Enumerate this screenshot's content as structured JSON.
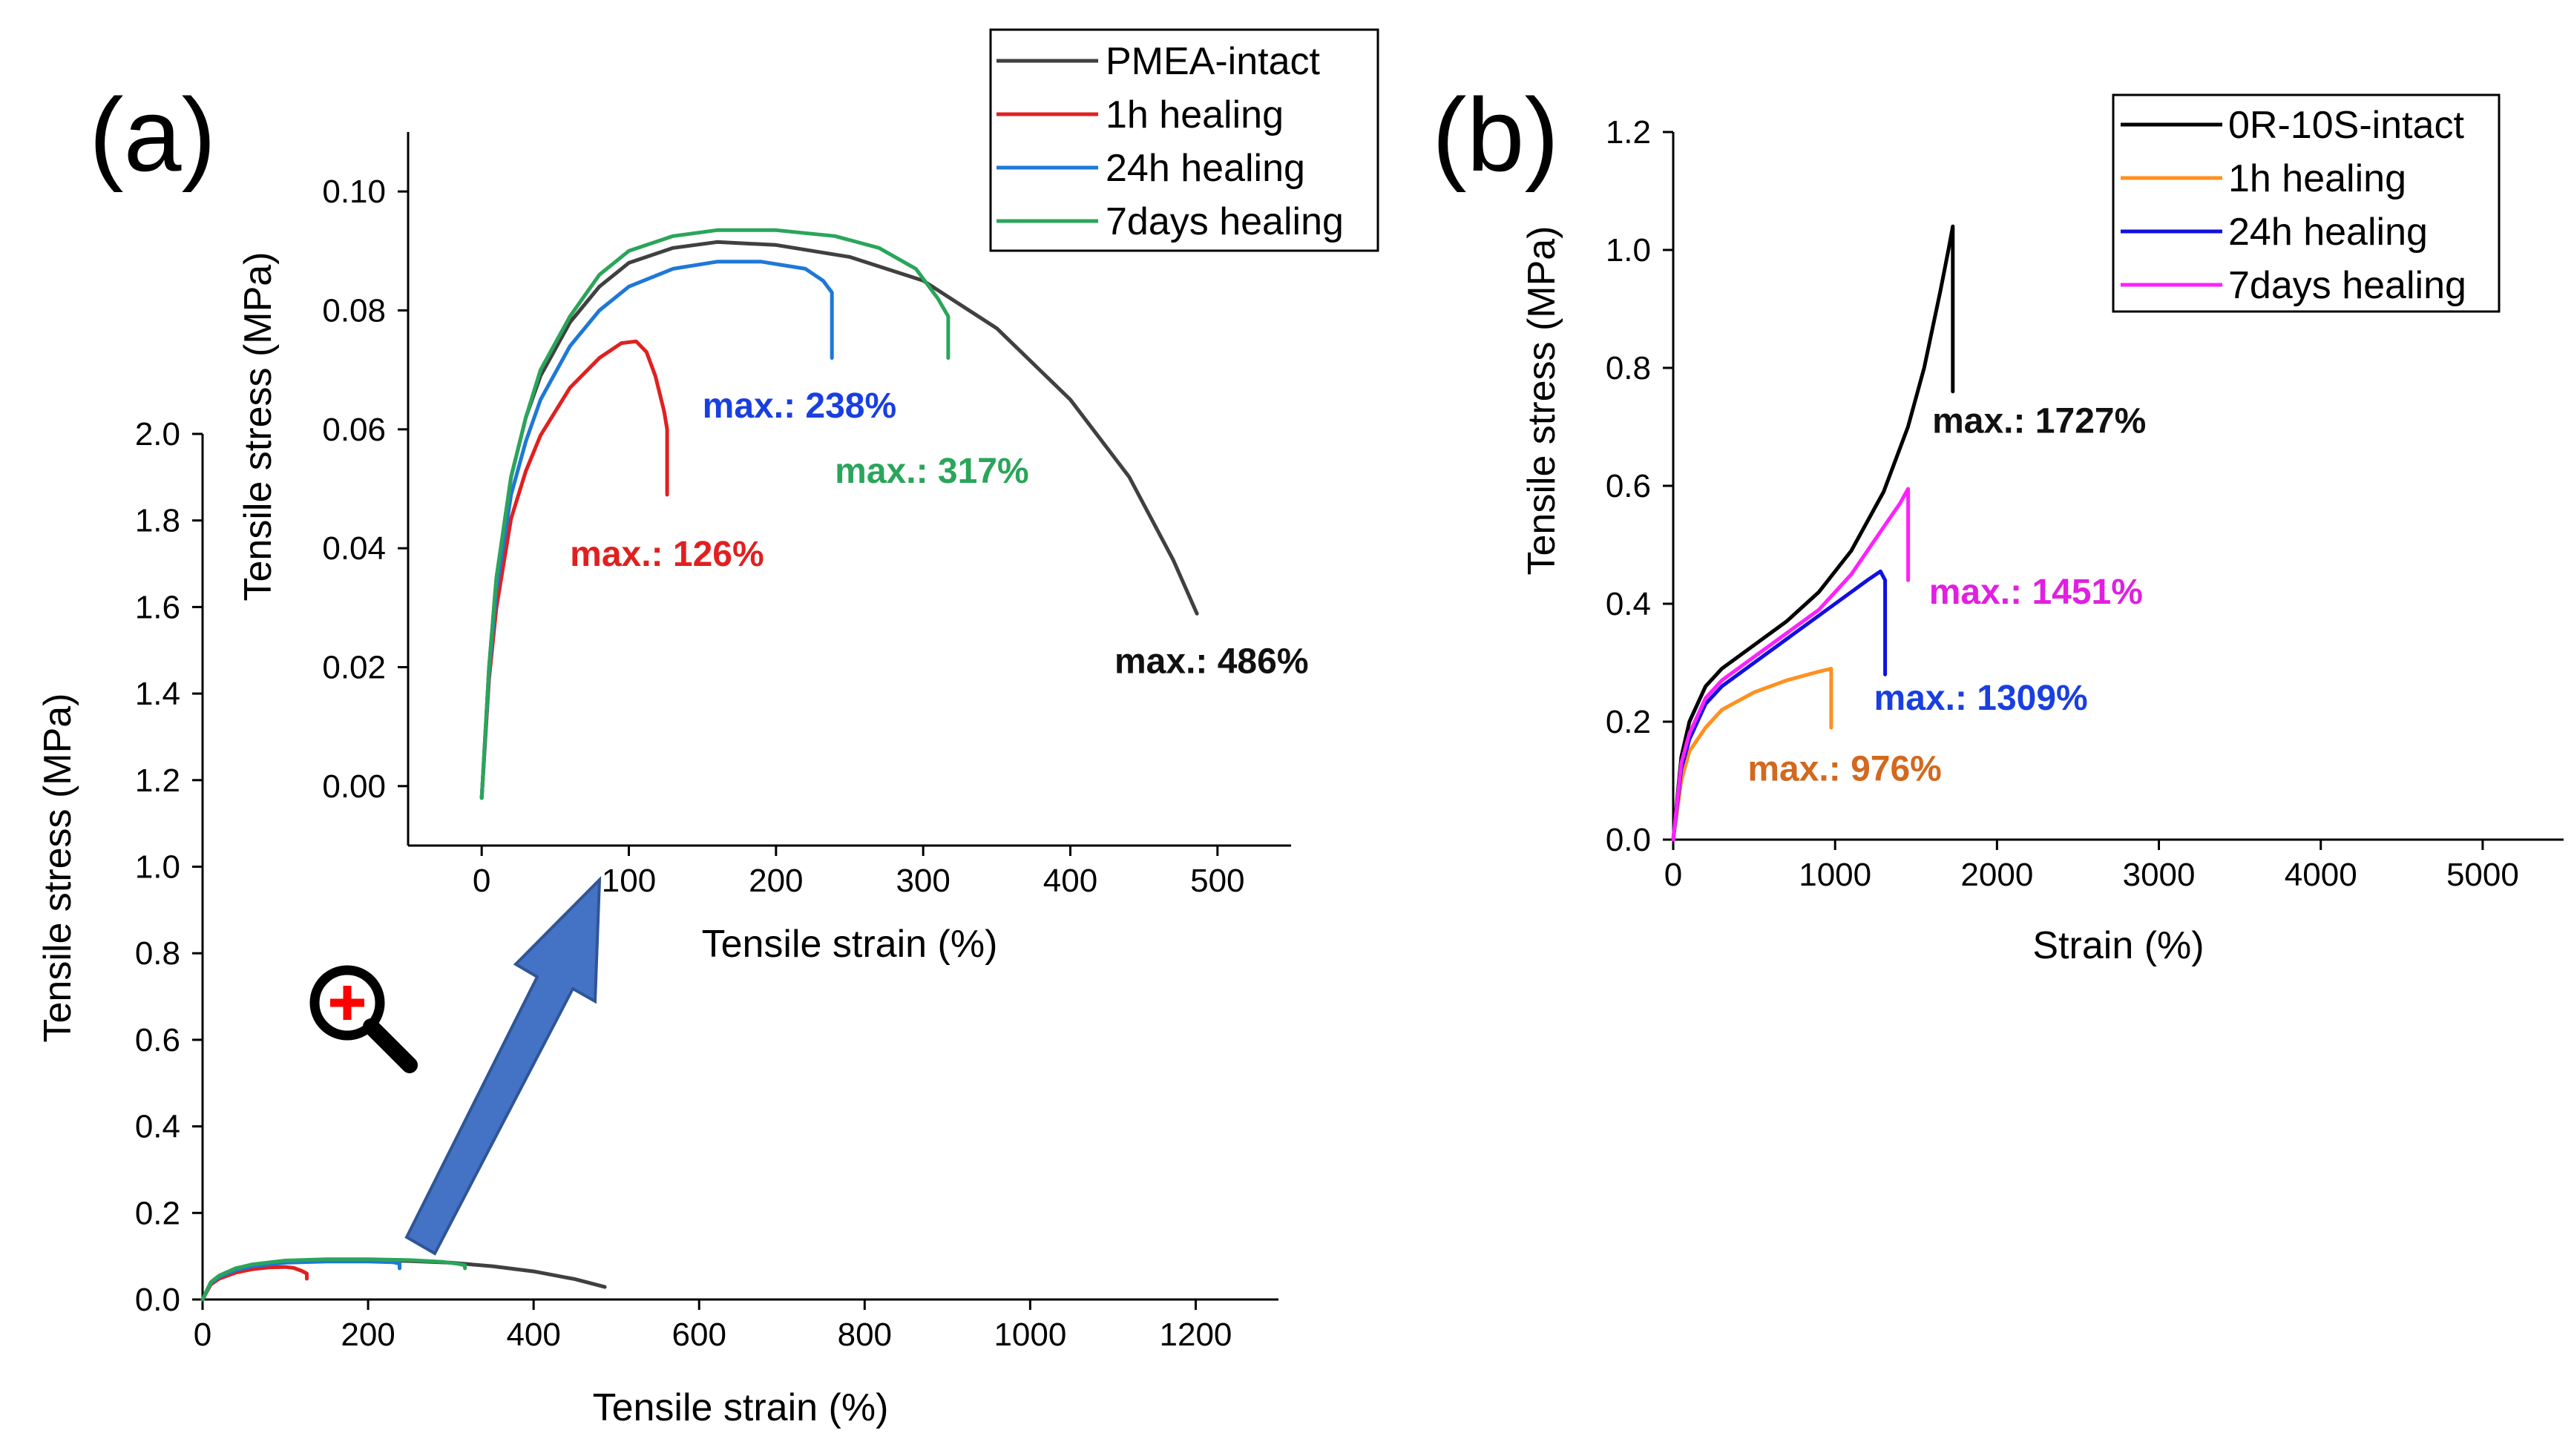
{
  "panels": {
    "a": {
      "label": "(a)"
    },
    "b": {
      "label": "(b)"
    }
  },
  "chart_data": [
    {
      "id": "a-main",
      "type": "line",
      "xlabel": "Tensile strain (%)",
      "ylabel": "Tensile stress (MPa)",
      "xlim": [
        0,
        1300
      ],
      "ylim": [
        0,
        2.0
      ],
      "xticks": [
        0,
        200,
        400,
        600,
        800,
        1000,
        1200
      ],
      "yticks": [
        0.0,
        0.2,
        0.4,
        0.6,
        0.8,
        1.0,
        1.2,
        1.4,
        1.6,
        1.8,
        2.0
      ],
      "series": [
        {
          "name": "PMEA-intact",
          "color": "#404040",
          "x": [
            0,
            10,
            20,
            40,
            60,
            100,
            150,
            200,
            250,
            300,
            350,
            400,
            450,
            486
          ],
          "y": [
            0,
            0.04,
            0.055,
            0.072,
            0.08,
            0.088,
            0.091,
            0.091,
            0.089,
            0.085,
            0.077,
            0.065,
            0.047,
            0.029
          ]
        },
        {
          "name": "1h healing",
          "color": "#e02020",
          "x": [
            0,
            10,
            20,
            40,
            60,
            80,
            100,
            110,
            120,
            126,
            126
          ],
          "y": [
            0,
            0.035,
            0.048,
            0.062,
            0.07,
            0.074,
            0.075,
            0.073,
            0.066,
            0.06,
            0.048
          ]
        },
        {
          "name": "24h healing",
          "color": "#1e78d6",
          "x": [
            0,
            10,
            20,
            40,
            60,
            100,
            150,
            200,
            230,
            238,
            238
          ],
          "y": [
            0,
            0.038,
            0.052,
            0.068,
            0.077,
            0.085,
            0.088,
            0.088,
            0.086,
            0.083,
            0.072
          ]
        },
        {
          "name": "7days healing",
          "color": "#2aa55a",
          "x": [
            0,
            10,
            20,
            40,
            60,
            100,
            150,
            200,
            250,
            290,
            310,
            317,
            317
          ],
          "y": [
            0,
            0.04,
            0.055,
            0.072,
            0.081,
            0.09,
            0.093,
            0.093,
            0.091,
            0.087,
            0.082,
            0.079,
            0.072
          ]
        }
      ]
    },
    {
      "id": "a-inset",
      "type": "line",
      "xlabel": "Tensile strain (%)",
      "ylabel": "Tensile stress (MPa)",
      "xlim": [
        -50,
        550
      ],
      "ylim": [
        -0.01,
        0.11
      ],
      "xticks": [
        0,
        100,
        200,
        300,
        400,
        500
      ],
      "yticks": [
        0.0,
        0.02,
        0.04,
        0.06,
        0.08,
        0.1
      ],
      "ytick_labels": [
        "0.00",
        "0.02",
        "0.04",
        "0.06",
        "0.08",
        "0.10"
      ],
      "legend": {
        "position": "top-right",
        "entries": [
          "PMEA-intact",
          "1h healing",
          "24h healing",
          "7days healing"
        ]
      },
      "annotations": [
        {
          "text": "max.: 126%",
          "color": "#e02020",
          "x": 60,
          "y": 0.037
        },
        {
          "text": "max.: 238%",
          "color": "#1a3fe0",
          "x": 150,
          "y": 0.062
        },
        {
          "text": "max.: 317%",
          "color": "#2aa55a",
          "x": 240,
          "y": 0.051
        },
        {
          "text": "max.: 486%",
          "color": "#111111",
          "x": 430,
          "y": 0.019
        }
      ],
      "series": [
        {
          "name": "PMEA-intact",
          "color": "#404040",
          "x": [
            0,
            5,
            10,
            20,
            30,
            40,
            60,
            80,
            100,
            130,
            160,
            200,
            250,
            300,
            350,
            400,
            440,
            470,
            486
          ],
          "y": [
            -0.002,
            0.02,
            0.035,
            0.052,
            0.062,
            0.069,
            0.078,
            0.084,
            0.088,
            0.0905,
            0.0915,
            0.091,
            0.089,
            0.085,
            0.077,
            0.065,
            0.052,
            0.038,
            0.029
          ]
        },
        {
          "name": "1h healing",
          "color": "#e02020",
          "x": [
            0,
            5,
            10,
            20,
            30,
            40,
            60,
            80,
            95,
            105,
            112,
            118,
            124,
            126,
            126
          ],
          "y": [
            -0.002,
            0.018,
            0.03,
            0.045,
            0.053,
            0.059,
            0.067,
            0.072,
            0.0745,
            0.0748,
            0.073,
            0.069,
            0.063,
            0.06,
            0.049
          ]
        },
        {
          "name": "24h healing",
          "color": "#1e78d6",
          "x": [
            0,
            5,
            10,
            20,
            30,
            40,
            60,
            80,
            100,
            130,
            160,
            190,
            220,
            232,
            238,
            238
          ],
          "y": [
            -0.002,
            0.019,
            0.033,
            0.049,
            0.058,
            0.065,
            0.074,
            0.08,
            0.084,
            0.087,
            0.0882,
            0.0882,
            0.087,
            0.085,
            0.083,
            0.072
          ]
        },
        {
          "name": "7days healing",
          "color": "#2aa55a",
          "x": [
            0,
            5,
            10,
            20,
            30,
            40,
            60,
            80,
            100,
            130,
            160,
            200,
            240,
            270,
            295,
            310,
            317,
            317
          ],
          "y": [
            -0.002,
            0.02,
            0.035,
            0.052,
            0.062,
            0.07,
            0.079,
            0.086,
            0.09,
            0.0925,
            0.0935,
            0.0935,
            0.0925,
            0.0905,
            0.087,
            0.082,
            0.079,
            0.072
          ]
        }
      ]
    },
    {
      "id": "b",
      "type": "line",
      "xlabel": "Strain (%)",
      "ylabel": "Tensile stress (MPa)",
      "xlim": [
        0,
        5500
      ],
      "ylim": [
        0,
        1.2
      ],
      "xticks": [
        0,
        1000,
        2000,
        3000,
        4000,
        5000
      ],
      "yticks": [
        0.0,
        0.2,
        0.4,
        0.6,
        0.8,
        1.0,
        1.2
      ],
      "legend": {
        "position": "top-right",
        "entries": [
          "0R-10S-intact",
          "1h healing",
          "24h healing",
          "7days healing"
        ]
      },
      "annotations": [
        {
          "text": "max.: 1727%",
          "color": "#111111",
          "x": 1600,
          "y": 0.69
        },
        {
          "text": "max.: 1451%",
          "color": "#e020e0",
          "x": 1580,
          "y": 0.4
        },
        {
          "text": "max.: 1309%",
          "color": "#1a3fe0",
          "x": 1240,
          "y": 0.22
        },
        {
          "text": "max.: 976%",
          "color": "#d2691e",
          "x": 460,
          "y": 0.1
        }
      ],
      "series": [
        {
          "name": "0R-10S-intact",
          "color": "#000000",
          "x": [
            0,
            50,
            100,
            200,
            300,
            500,
            700,
            900,
            1100,
            1300,
            1450,
            1550,
            1650,
            1700,
            1727,
            1727
          ],
          "y": [
            0,
            0.14,
            0.2,
            0.26,
            0.29,
            0.33,
            0.37,
            0.42,
            0.49,
            0.59,
            0.7,
            0.8,
            0.93,
            1.0,
            1.04,
            0.76
          ]
        },
        {
          "name": "1h healing",
          "color": "#ff9020",
          "x": [
            0,
            50,
            100,
            200,
            300,
            500,
            700,
            900,
            976,
            976
          ],
          "y": [
            0,
            0.1,
            0.15,
            0.19,
            0.22,
            0.25,
            0.27,
            0.285,
            0.29,
            0.19
          ]
        },
        {
          "name": "24h healing",
          "color": "#1010e0",
          "x": [
            0,
            50,
            100,
            200,
            300,
            500,
            700,
            900,
            1100,
            1200,
            1280,
            1309,
            1309
          ],
          "y": [
            0,
            0.12,
            0.17,
            0.23,
            0.26,
            0.3,
            0.34,
            0.38,
            0.42,
            0.44,
            0.455,
            0.44,
            0.28
          ]
        },
        {
          "name": "7days healing",
          "color": "#ff20ff",
          "x": [
            0,
            50,
            100,
            200,
            300,
            500,
            700,
            900,
            1100,
            1300,
            1400,
            1451,
            1451
          ],
          "y": [
            0,
            0.13,
            0.18,
            0.24,
            0.27,
            0.31,
            0.35,
            0.39,
            0.45,
            0.53,
            0.57,
            0.595,
            0.44
          ]
        }
      ]
    }
  ]
}
